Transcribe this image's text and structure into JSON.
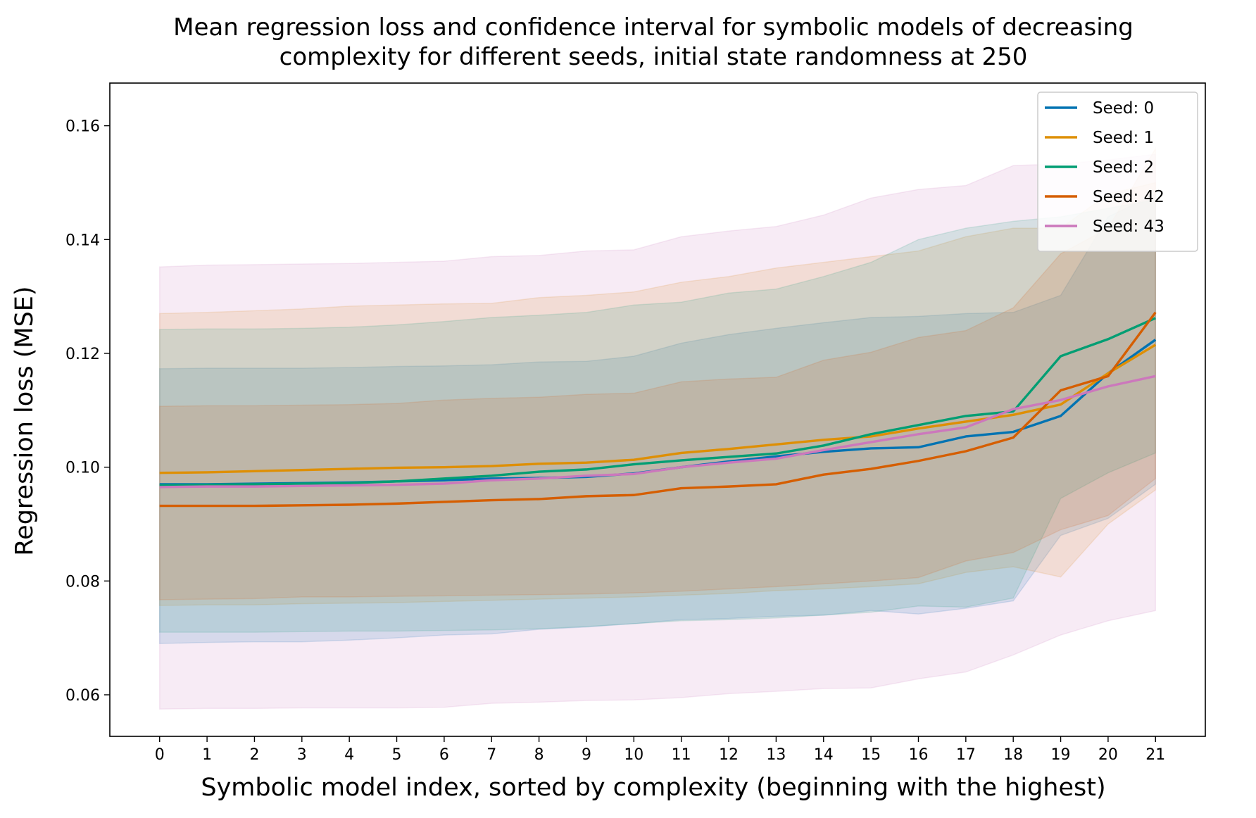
{
  "chart_data": {
    "type": "line",
    "title_lines": [
      "Mean regression loss and confidence interval for symbolic models of decreasing",
      "complexity for different seeds, initial state randomness at 250"
    ],
    "xlabel": "Symbolic model index, sorted by complexity (beginning with the highest)",
    "ylabel": "Regression loss (MSE)",
    "x": [
      0,
      1,
      2,
      3,
      4,
      5,
      6,
      7,
      8,
      9,
      10,
      11,
      12,
      13,
      14,
      15,
      16,
      17,
      18,
      19,
      20,
      21
    ],
    "xlim": [
      -1.05,
      22.05
    ],
    "ylim": [
      0.0527,
      0.1675
    ],
    "yticks": [
      0.06,
      0.08,
      0.1,
      0.12,
      0.14,
      0.16
    ],
    "ytick_labels": [
      "0.06",
      "0.08",
      "0.10",
      "0.12",
      "0.14",
      "0.16"
    ],
    "legend_position": "top-right",
    "grid": false,
    "series": [
      {
        "name": "Seed: 0",
        "color": "#0173b2",
        "values": [
          0.097,
          0.097,
          0.0971,
          0.0972,
          0.0973,
          0.0975,
          0.0977,
          0.098,
          0.0981,
          0.0983,
          0.0989,
          0.1,
          0.101,
          0.1019,
          0.1027,
          0.1033,
          0.1035,
          0.1054,
          0.1062,
          0.109,
          0.1165,
          0.1224
        ],
        "lower": [
          0.069,
          0.0692,
          0.0693,
          0.0693,
          0.0696,
          0.07,
          0.0705,
          0.0707,
          0.0715,
          0.0719,
          0.0725,
          0.0732,
          0.0734,
          0.0738,
          0.074,
          0.0748,
          0.0742,
          0.0752,
          0.0765,
          0.088,
          0.091,
          0.097
        ],
        "upper": [
          0.1173,
          0.1174,
          0.1174,
          0.1174,
          0.1175,
          0.1177,
          0.1178,
          0.118,
          0.1185,
          0.1186,
          0.1195,
          0.1218,
          0.1233,
          0.1244,
          0.1254,
          0.1263,
          0.1265,
          0.127,
          0.1272,
          0.1302,
          0.144,
          0.148
        ]
      },
      {
        "name": "Seed: 1",
        "color": "#de8f05",
        "values": [
          0.099,
          0.0991,
          0.0993,
          0.0995,
          0.0997,
          0.0999,
          0.1,
          0.1002,
          0.1006,
          0.1008,
          0.1013,
          0.1025,
          0.1032,
          0.104,
          0.1048,
          0.1054,
          0.1068,
          0.108,
          0.1092,
          0.111,
          0.1165,
          0.1215
        ],
        "lower": [
          0.0757,
          0.0758,
          0.0758,
          0.076,
          0.0761,
          0.0762,
          0.0764,
          0.0766,
          0.0768,
          0.077,
          0.0772,
          0.0775,
          0.0778,
          0.0783,
          0.0786,
          0.079,
          0.0795,
          0.0815,
          0.0825,
          0.0807,
          0.09,
          0.096
        ],
        "upper": [
          0.127,
          0.1272,
          0.1275,
          0.1278,
          0.1283,
          0.1285,
          0.1287,
          0.1288,
          0.1298,
          0.1302,
          0.1308,
          0.1325,
          0.1335,
          0.135,
          0.136,
          0.137,
          0.138,
          0.1405,
          0.142,
          0.142,
          0.148,
          0.15
        ]
      },
      {
        "name": "Seed: 2",
        "color": "#029e73",
        "values": [
          0.0968,
          0.0969,
          0.097,
          0.0971,
          0.0972,
          0.0975,
          0.098,
          0.0985,
          0.0992,
          0.0996,
          0.1005,
          0.1012,
          0.1018,
          0.1024,
          0.1038,
          0.1058,
          0.1074,
          0.109,
          0.1098,
          0.1195,
          0.1225,
          0.1262
        ],
        "lower": [
          0.071,
          0.071,
          0.071,
          0.0711,
          0.0712,
          0.0712,
          0.0713,
          0.0714,
          0.0716,
          0.072,
          0.0725,
          0.073,
          0.0732,
          0.0735,
          0.074,
          0.0745,
          0.0756,
          0.0754,
          0.077,
          0.0945,
          0.099,
          0.1025
        ],
        "upper": [
          0.1242,
          0.1243,
          0.1243,
          0.1244,
          0.1246,
          0.125,
          0.1256,
          0.1263,
          0.1267,
          0.1272,
          0.1285,
          0.129,
          0.1306,
          0.1313,
          0.1335,
          0.136,
          0.14,
          0.142,
          0.1432,
          0.144,
          0.1455,
          0.147
        ]
      },
      {
        "name": "Seed: 42",
        "color": "#d55e00",
        "values": [
          0.0932,
          0.0932,
          0.0932,
          0.0933,
          0.0934,
          0.0936,
          0.0939,
          0.0942,
          0.0944,
          0.0949,
          0.0951,
          0.0963,
          0.0966,
          0.097,
          0.0987,
          0.0997,
          0.1011,
          0.1028,
          0.1052,
          0.1135,
          0.116,
          0.1272
        ],
        "lower": [
          0.0767,
          0.0768,
          0.0769,
          0.0772,
          0.0772,
          0.0773,
          0.0774,
          0.0775,
          0.0776,
          0.0777,
          0.0779,
          0.0782,
          0.0786,
          0.079,
          0.0795,
          0.08,
          0.0806,
          0.0835,
          0.085,
          0.089,
          0.0915,
          0.098
        ],
        "upper": [
          0.1107,
          0.1108,
          0.1108,
          0.1109,
          0.111,
          0.1112,
          0.1118,
          0.1121,
          0.1123,
          0.1128,
          0.113,
          0.115,
          0.1155,
          0.1158,
          0.1188,
          0.1202,
          0.1228,
          0.124,
          0.128,
          0.1375,
          0.142,
          0.156
        ]
      },
      {
        "name": "Seed: 43",
        "color": "#cc78bc",
        "values": [
          0.0965,
          0.0966,
          0.0966,
          0.0967,
          0.0968,
          0.0969,
          0.0971,
          0.0977,
          0.098,
          0.0985,
          0.0988,
          0.1,
          0.1008,
          0.1015,
          0.103,
          0.1044,
          0.1058,
          0.107,
          0.1102,
          0.1118,
          0.1142,
          0.116
        ],
        "lower": [
          0.0575,
          0.0576,
          0.0576,
          0.0577,
          0.0577,
          0.0577,
          0.0578,
          0.0585,
          0.0587,
          0.059,
          0.0591,
          0.0595,
          0.0602,
          0.0606,
          0.0611,
          0.0612,
          0.0628,
          0.064,
          0.067,
          0.0705,
          0.073,
          0.0748
        ],
        "upper": [
          0.1352,
          0.1355,
          0.1356,
          0.1357,
          0.1358,
          0.136,
          0.1362,
          0.137,
          0.1372,
          0.138,
          0.1382,
          0.1405,
          0.1415,
          0.1423,
          0.1443,
          0.1473,
          0.1488,
          0.1495,
          0.153,
          0.1533,
          0.154,
          0.155
        ]
      }
    ]
  }
}
